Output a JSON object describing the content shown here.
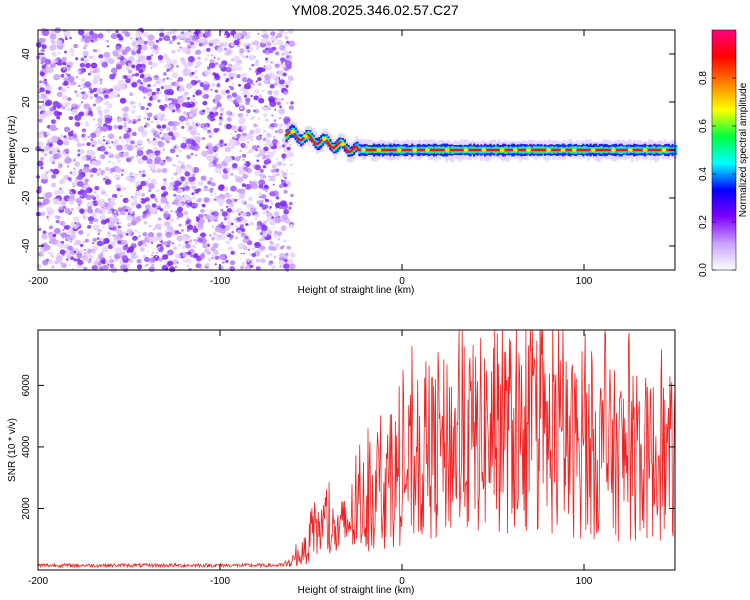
{
  "title": "YM08.2025.346.02.57.C27",
  "chart_data": [
    {
      "type": "heatmap",
      "name": "spectrogram",
      "xlabel": "Height of straight line (km)",
      "ylabel": "Frequency (Hz)",
      "xlim": [
        -200,
        150
      ],
      "ylim": [
        -50,
        50
      ],
      "x_ticks": [
        -200,
        -100,
        0,
        100
      ],
      "y_ticks": [
        -40,
        -20,
        0,
        20,
        40
      ],
      "noise_region_x": [
        -200,
        -60
      ],
      "signal_band": {
        "x_start": -64,
        "x_end": 150,
        "freq_start": 7,
        "freq_end": 0,
        "settle_x": -25
      },
      "colorbar": {
        "label": "Normalized spectral amplitude",
        "range": [
          0,
          1
        ],
        "ticks": [
          0.0,
          0.2,
          0.4,
          0.6,
          0.8
        ],
        "tick_labels": [
          "0.0",
          "0.2",
          "0.4",
          "0.6",
          "0.8"
        ],
        "colors": [
          "#ffffff",
          "#c8a0ff",
          "#8000ff",
          "#0000ff",
          "#00ffff",
          "#00ff40",
          "#ffff00",
          "#ff8000",
          "#ff0000",
          "#ff0080"
        ]
      }
    },
    {
      "type": "line",
      "name": "snr",
      "xlabel": "Height of straight line (km)",
      "ylabel": "SNR (10 * v/v)",
      "xlim": [
        -200,
        150
      ],
      "ylim": [
        0,
        7800
      ],
      "x_ticks": [
        -200,
        -100,
        0,
        100
      ],
      "y_ticks": [
        2000,
        4000,
        6000
      ],
      "color": "#ee2222",
      "envelope_points": [
        {
          "x": -200,
          "y": 150
        },
        {
          "x": -65,
          "y": 150
        },
        {
          "x": -55,
          "y": 500
        },
        {
          "x": -45,
          "y": 1400
        },
        {
          "x": -35,
          "y": 1200
        },
        {
          "x": -20,
          "y": 2200
        },
        {
          "x": -5,
          "y": 2900
        },
        {
          "x": 10,
          "y": 3500
        },
        {
          "x": 25,
          "y": 4000
        },
        {
          "x": 40,
          "y": 4300
        },
        {
          "x": 55,
          "y": 4500
        },
        {
          "x": 70,
          "y": 4300
        },
        {
          "x": 90,
          "y": 4000
        },
        {
          "x": 110,
          "y": 3800
        },
        {
          "x": 130,
          "y": 3600
        },
        {
          "x": 150,
          "y": 3600
        }
      ],
      "peak": {
        "x": 55,
        "y": 7800
      }
    }
  ]
}
